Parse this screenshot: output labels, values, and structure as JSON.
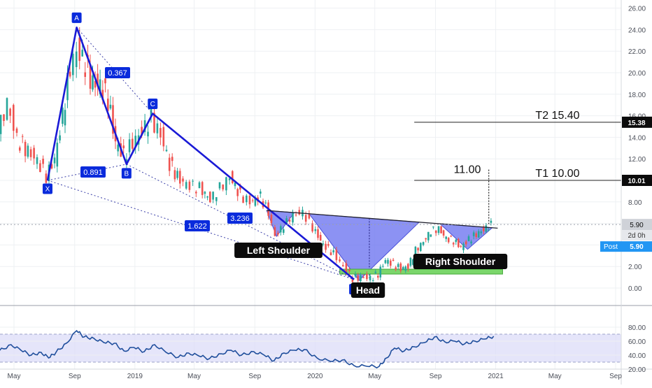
{
  "chart_data": {
    "type": "candlestick",
    "title": "",
    "colors": {
      "up": "#26a69a",
      "down": "#ef5350",
      "pattern": "#1a1ad6",
      "fill": "#6b73f0",
      "rsi": "#1f4e9c",
      "rsi_band": "#dcdcf8",
      "support": "#7bd66b",
      "label_bg": "#0a2bdc",
      "post": "#2196f3"
    },
    "price_axis": {
      "ticks": [
        "26.00",
        "24.00",
        "22.00",
        "20.00",
        "18.00",
        "16.00",
        "14.00",
        "12.00",
        "10.00",
        "8.00",
        "6.00",
        "4.00",
        "2.00",
        "0.00"
      ],
      "range": [
        -1.5,
        27
      ]
    },
    "rsi_axis": {
      "ticks": [
        "80.00",
        "60.00",
        "40.00",
        "20.00"
      ],
      "range": [
        18,
        82
      ],
      "band": [
        30,
        70
      ]
    },
    "time_axis": {
      "labels": [
        "May",
        "Sep",
        "2019",
        "May",
        "Sep",
        "2020",
        "May",
        "Sep",
        "2021",
        "May",
        "Sep"
      ],
      "dates": [
        "2018-05",
        "2018-09",
        "2019-01",
        "2019-05",
        "2019-09",
        "2020-01",
        "2020-05",
        "2020-09",
        "2021-01",
        "2021-05",
        "2021-09"
      ]
    },
    "xabcd": [
      {
        "label": "X",
        "date": "2018-07-08",
        "price": 10.0
      },
      {
        "label": "A",
        "date": "2018-09-05",
        "price": 24.2
      },
      {
        "label": "B",
        "date": "2018-12-15",
        "price": 11.5
      },
      {
        "label": "C",
        "date": "2019-02-06",
        "price": 16.2
      },
      {
        "label": "D",
        "date": "2020-03-20",
        "price": 0.8
      }
    ],
    "fib_ratios": [
      {
        "label": "0.367",
        "between": "XA-B"
      },
      {
        "label": "0.891",
        "between": "XB"
      },
      {
        "label": "3.236",
        "between": "BC-D"
      },
      {
        "label": "1.622",
        "between": "XD"
      }
    ],
    "pattern_labels": [
      "Left Shoulder",
      "Head",
      "Right Shoulder"
    ],
    "neckline": [
      {
        "date": "2019-09-25",
        "price": 7.2
      },
      {
        "date": "2020-12-25",
        "price": 5.6
      }
    ],
    "targets": [
      {
        "label": "T2   15.40",
        "price": 15.4,
        "axis": "15.38"
      },
      {
        "label": "T1   10.00",
        "price": 10.0,
        "axis": "10.01"
      }
    ],
    "projection": {
      "label": "11.00",
      "price": 11.0
    },
    "last": {
      "price": "5.90",
      "countdown": "2d 0h",
      "post_label": "Post",
      "post_price": "5.90"
    },
    "prices": [
      {
        "date": "2018-04-01",
        "price": 14.3
      },
      {
        "date": "2018-04-20",
        "price": 17.2
      },
      {
        "date": "2018-05-10",
        "price": 13.8
      },
      {
        "date": "2018-06-01",
        "price": 12.7
      },
      {
        "date": "2018-06-20",
        "price": 11.8
      },
      {
        "date": "2018-07-08",
        "price": 10.4
      },
      {
        "date": "2018-07-25",
        "price": 12.0
      },
      {
        "date": "2018-08-10",
        "price": 16.0
      },
      {
        "date": "2018-08-25",
        "price": 20.5
      },
      {
        "date": "2018-09-08",
        "price": 22.0
      },
      {
        "date": "2018-09-25",
        "price": 20.8
      },
      {
        "date": "2018-10-10",
        "price": 19.0
      },
      {
        "date": "2018-10-25",
        "price": 18.8
      },
      {
        "date": "2018-11-10",
        "price": 17.5
      },
      {
        "date": "2018-11-25",
        "price": 13.5
      },
      {
        "date": "2018-12-12",
        "price": 12.3
      },
      {
        "date": "2018-12-30",
        "price": 13.5
      },
      {
        "date": "2019-01-18",
        "price": 14.5
      },
      {
        "date": "2019-02-06",
        "price": 15.8
      },
      {
        "date": "2019-02-25",
        "price": 14.2
      },
      {
        "date": "2019-03-15",
        "price": 11.5
      },
      {
        "date": "2019-04-05",
        "price": 10.0
      },
      {
        "date": "2019-04-25",
        "price": 9.5
      },
      {
        "date": "2019-05-15",
        "price": 9.3
      },
      {
        "date": "2019-06-05",
        "price": 8.2
      },
      {
        "date": "2019-06-25",
        "price": 9.3
      },
      {
        "date": "2019-07-15",
        "price": 10.3
      },
      {
        "date": "2019-08-05",
        "price": 8.6
      },
      {
        "date": "2019-08-25",
        "price": 8.0
      },
      {
        "date": "2019-09-15",
        "price": 8.5
      },
      {
        "date": "2019-10-01",
        "price": 7.0
      },
      {
        "date": "2019-10-15",
        "price": 4.8
      },
      {
        "date": "2019-11-01",
        "price": 5.8
      },
      {
        "date": "2019-11-20",
        "price": 6.8
      },
      {
        "date": "2019-12-10",
        "price": 7.0
      },
      {
        "date": "2019-12-30",
        "price": 5.6
      },
      {
        "date": "2020-01-20",
        "price": 4.0
      },
      {
        "date": "2020-02-10",
        "price": 3.2
      },
      {
        "date": "2020-03-01",
        "price": 2.0
      },
      {
        "date": "2020-03-20",
        "price": 0.9
      },
      {
        "date": "2020-04-05",
        "price": 1.0
      },
      {
        "date": "2020-04-25",
        "price": 0.9
      },
      {
        "date": "2020-05-10",
        "price": 1.3
      },
      {
        "date": "2020-05-25",
        "price": 2.6
      },
      {
        "date": "2020-06-10",
        "price": 2.2
      },
      {
        "date": "2020-06-25",
        "price": 1.8
      },
      {
        "date": "2020-07-10",
        "price": 2.0
      },
      {
        "date": "2020-07-25",
        "price": 3.5
      },
      {
        "date": "2020-08-10",
        "price": 4.3
      },
      {
        "date": "2020-08-25",
        "price": 5.3
      },
      {
        "date": "2020-09-10",
        "price": 5.5
      },
      {
        "date": "2020-09-25",
        "price": 4.6
      },
      {
        "date": "2020-10-10",
        "price": 4.4
      },
      {
        "date": "2020-10-25",
        "price": 3.8
      },
      {
        "date": "2020-11-10",
        "price": 4.5
      },
      {
        "date": "2020-11-25",
        "price": 5.0
      },
      {
        "date": "2020-12-10",
        "price": 5.4
      },
      {
        "date": "2020-12-25",
        "price": 5.9
      }
    ],
    "rsi": [
      {
        "date": "2018-04-01",
        "value": 46
      },
      {
        "date": "2018-04-25",
        "value": 55
      },
      {
        "date": "2018-05-15",
        "value": 47
      },
      {
        "date": "2018-06-05",
        "value": 40
      },
      {
        "date": "2018-06-25",
        "value": 44
      },
      {
        "date": "2018-07-10",
        "value": 36
      },
      {
        "date": "2018-07-25",
        "value": 44
      },
      {
        "date": "2018-08-15",
        "value": 57
      },
      {
        "date": "2018-09-05",
        "value": 75
      },
      {
        "date": "2018-09-20",
        "value": 66
      },
      {
        "date": "2018-10-10",
        "value": 64
      },
      {
        "date": "2018-10-30",
        "value": 58
      },
      {
        "date": "2018-11-20",
        "value": 57
      },
      {
        "date": "2018-12-10",
        "value": 46
      },
      {
        "date": "2018-12-30",
        "value": 51
      },
      {
        "date": "2019-01-20",
        "value": 45
      },
      {
        "date": "2019-02-10",
        "value": 55
      },
      {
        "date": "2019-03-05",
        "value": 44
      },
      {
        "date": "2019-03-30",
        "value": 37
      },
      {
        "date": "2019-04-20",
        "value": 43
      },
      {
        "date": "2019-05-10",
        "value": 39
      },
      {
        "date": "2019-06-01",
        "value": 35
      },
      {
        "date": "2019-06-25",
        "value": 42
      },
      {
        "date": "2019-07-15",
        "value": 47
      },
      {
        "date": "2019-08-05",
        "value": 40
      },
      {
        "date": "2019-08-30",
        "value": 45
      },
      {
        "date": "2019-09-20",
        "value": 40
      },
      {
        "date": "2019-10-10",
        "value": 32
      },
      {
        "date": "2019-10-30",
        "value": 43
      },
      {
        "date": "2019-11-20",
        "value": 47
      },
      {
        "date": "2019-12-10",
        "value": 48
      },
      {
        "date": "2020-01-05",
        "value": 36
      },
      {
        "date": "2020-02-01",
        "value": 31
      },
      {
        "date": "2020-02-25",
        "value": 33
      },
      {
        "date": "2020-03-20",
        "value": 25
      },
      {
        "date": "2020-04-15",
        "value": 24
      },
      {
        "date": "2020-05-10",
        "value": 24
      },
      {
        "date": "2020-05-25",
        "value": 36
      },
      {
        "date": "2020-06-10",
        "value": 50
      },
      {
        "date": "2020-06-30",
        "value": 46
      },
      {
        "date": "2020-07-20",
        "value": 52
      },
      {
        "date": "2020-08-10",
        "value": 58
      },
      {
        "date": "2020-08-30",
        "value": 66
      },
      {
        "date": "2020-09-20",
        "value": 59
      },
      {
        "date": "2020-10-10",
        "value": 60
      },
      {
        "date": "2020-10-30",
        "value": 56
      },
      {
        "date": "2020-11-20",
        "value": 60
      },
      {
        "date": "2020-12-10",
        "value": 63
      },
      {
        "date": "2020-12-28",
        "value": 67
      }
    ]
  }
}
